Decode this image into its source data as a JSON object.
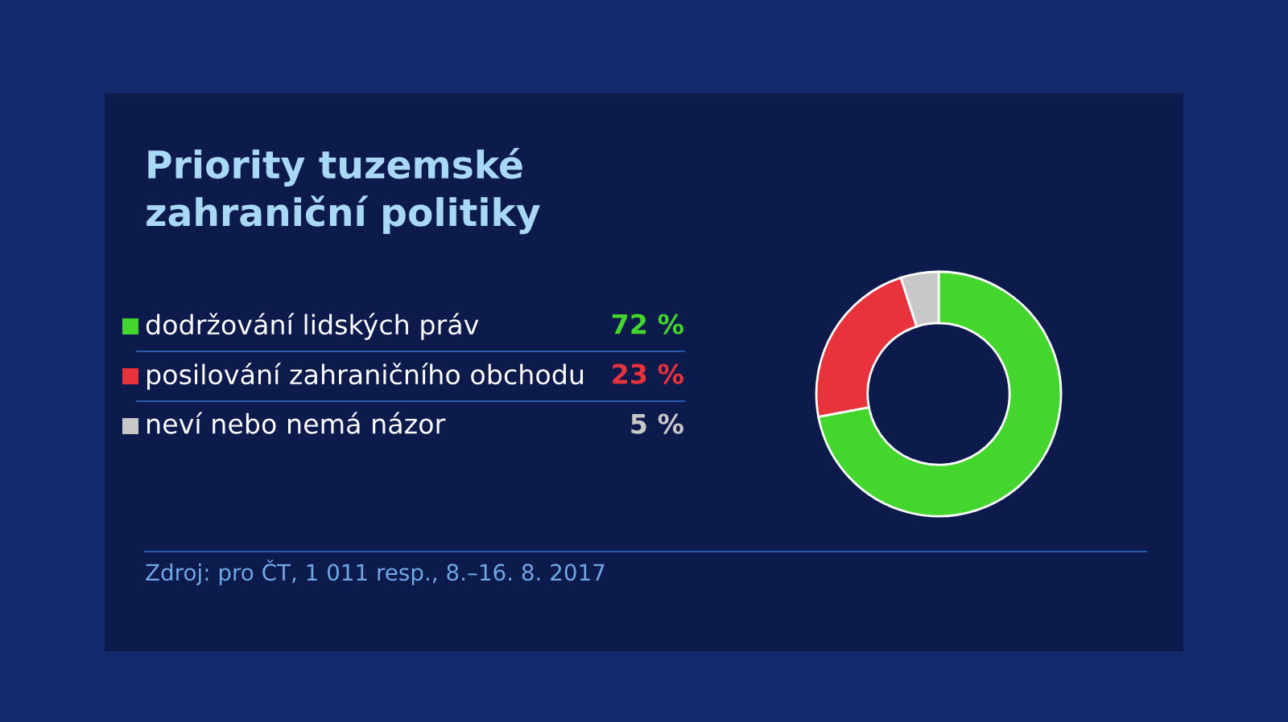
{
  "chart_data": {
    "type": "donut",
    "title": "Priority tuzemské zahraniční politiky",
    "categories": [
      "dodržování lidských práv",
      "posilování zahraničního obchodu",
      "neví nebo nemá názor"
    ],
    "values": [
      72,
      23,
      5
    ],
    "colors": [
      "#44d62c",
      "#e8323c",
      "#c8c8c8"
    ],
    "value_labels": [
      "72 %",
      "23 %",
      "5 %"
    ],
    "legend": "left",
    "annotations": [
      "Zdroj: pro ČT, 1 011 resp., 8.–16. 8. 2017"
    ]
  }
}
